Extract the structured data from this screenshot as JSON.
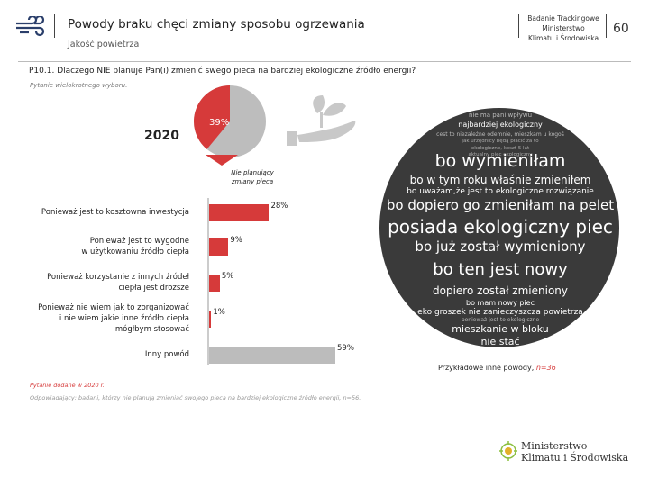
{
  "header": {
    "title": "Powody braku chęci zmiany sposobu ogrzewania",
    "subtitle": "Jakość powietrza",
    "study_line1": "Badanie Trackingowe",
    "study_line2": "Ministerstwo",
    "study_line3": "Klimatu i Środowiska",
    "page_number": "60"
  },
  "question": {
    "text": "P10.1. Dlaczego NIE planuje Pan(i) zmienić swego pieca na bardziej ekologiczne źródło energii?",
    "note": "Pytanie wielokrotnego wyboru."
  },
  "pie": {
    "year": "2020",
    "highlight_value": 39,
    "highlight_label": "39%",
    "highlight_color": "#d63a3a",
    "rest_color": "#bdbdbd",
    "legend_label_line1": "Nie planujący",
    "legend_label_line2": "zmiany pieca"
  },
  "chart_data": {
    "type": "bar",
    "orientation": "horizontal",
    "title": "Powody braku chęci zmiany sposobu ogrzewania",
    "categories": [
      [
        "Ponieważ jest to kosztowna inwestycja"
      ],
      [
        "Ponieważ jest to wygodne",
        "w użytkowaniu źródło ciepła"
      ],
      [
        "Ponieważ korzystanie z innych źródeł",
        "ciepła jest droższe"
      ],
      [
        "Ponieważ nie wiem jak to zorganizować",
        "i nie wiem jakie inne źródło ciepła",
        "mógłbym stosować"
      ],
      [
        "Inny powód"
      ]
    ],
    "values": [
      28,
      9,
      5,
      1,
      59
    ],
    "value_labels": [
      "28%",
      "9%",
      "5%",
      "1%",
      "59%"
    ],
    "unit": "%",
    "xlim": [
      0,
      60
    ],
    "bar_colors": [
      "#d63a3a",
      "#d63a3a",
      "#d63a3a",
      "#d63a3a",
      "#bcbcbc"
    ]
  },
  "word_cloud": {
    "words": [
      "nie ma pani wpływu",
      "najbardziej ekologiczny",
      "cest to niezależne odemnie, mieszkam u kogoś",
      "jak urzędnicy będą płacić za to",
      "ekologiczne, koszt 5 lat",
      "aktualny piec ekologiczny",
      "bo wymieniłam",
      "bo w tym roku właśnie zmieniłem",
      "bo uważam,że jest to ekologiczne rozwiązanie",
      "bo dopiero go zmieniłam na pelet",
      "posiada ekologiczny piec",
      "bo już został wymieniony",
      "bo ten jest nowy",
      "dopiero został zmieniony",
      "bo mam nowy piec",
      "eko groszek nie zanieczyszcza powietrza",
      "ponieważ jest to ekologiczne",
      "mieszkanie w bloku",
      "nie stać"
    ],
    "caption": "Przykładowe inne powody,",
    "caption_n": "n=36"
  },
  "footer": {
    "note1": "Pytanie dodane w 2020 r.",
    "note2": "Odpowiadający: badani, którzy nie planują zmieniać swojego pieca na bardziej ekologiczne źródło energii, n=56.",
    "ministry_line1": "Ministerstwo",
    "ministry_line2": "Klimatu i Środowiska"
  }
}
